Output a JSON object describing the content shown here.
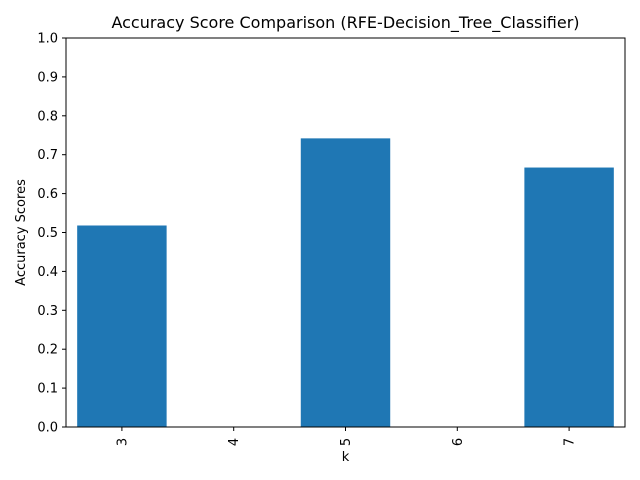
{
  "chart_data": {
    "type": "bar",
    "title": "Accuracy Score Comparison (RFE-Decision_Tree_Classifier)",
    "xlabel": "k",
    "ylabel": "Accuracy Scores",
    "categories": [
      "3",
      "4",
      "5",
      "6",
      "7"
    ],
    "values": [
      0.518,
      null,
      0.742,
      null,
      0.667
    ],
    "ylim": [
      0,
      1
    ],
    "yticks": [
      "0.0",
      "0.1",
      "0.2",
      "0.3",
      "0.4",
      "0.5",
      "0.6",
      "0.7",
      "0.8",
      "0.9",
      "1.0"
    ],
    "grid": false,
    "bar_color": "#1f77b4"
  }
}
